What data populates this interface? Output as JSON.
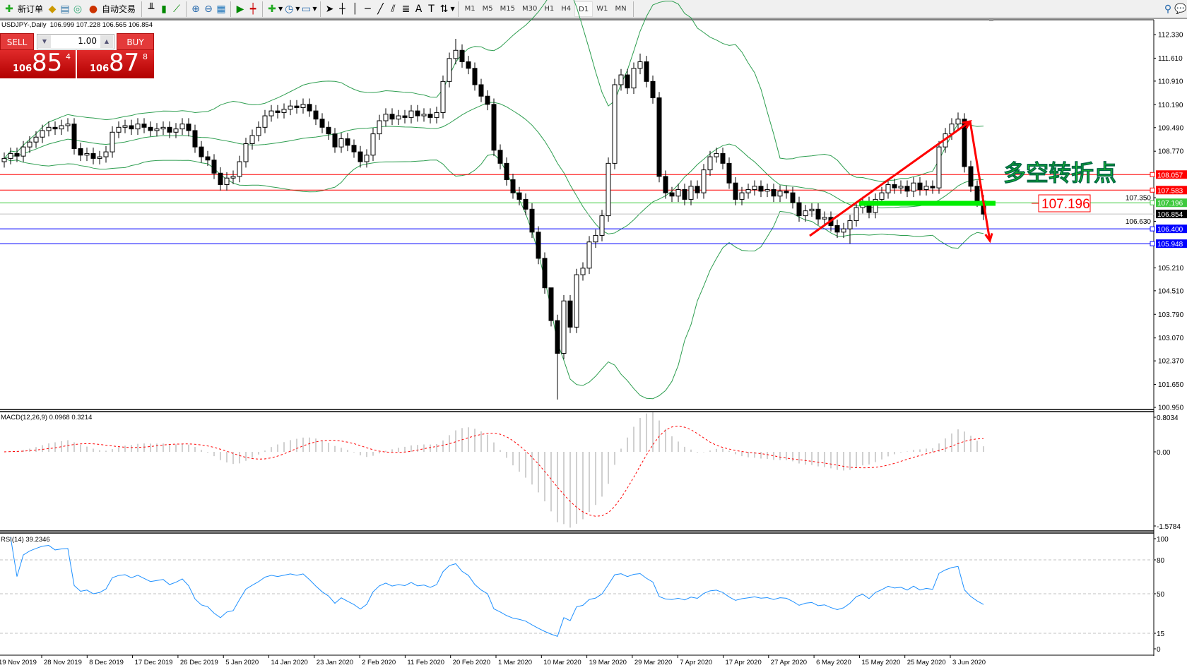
{
  "toolbar": {
    "new_order": "新订单",
    "auto_trading": "自动交易",
    "timeframes": [
      "M1",
      "M5",
      "M15",
      "M30",
      "H1",
      "H4",
      "D1",
      "W1",
      "MN"
    ],
    "active_timeframe": "D1",
    "icons": [
      "new-order-icon",
      "history-icon",
      "market-watch-icon",
      "signals-icon",
      "auto-trading-icon",
      "bar-chart-icon",
      "candlestick-icon",
      "line-chart-icon",
      "zoom-in-icon",
      "zoom-out-icon",
      "tile-windows-icon",
      "autoscroll-icon",
      "chart-shift-icon",
      "indicators-icon",
      "periods-icon",
      "templates-icon",
      "cursor-icon",
      "crosshair-icon",
      "vertical-line-icon",
      "horizontal-line-icon",
      "trendline-icon",
      "equidistant-channel-icon",
      "fibonacci-icon",
      "text-icon",
      "text-label-icon",
      "arrows-icon",
      "search-icon",
      "chat-icon"
    ]
  },
  "symbol_line": "USDJPY-,Daily  106.999 107.228 106.565 106.854",
  "trade_panel": {
    "sell_label": "SELL",
    "buy_label": "BUY",
    "lot": "1.00",
    "sell_price": {
      "small": "106",
      "big": "85",
      "sup": "4"
    },
    "buy_price": {
      "small": "106",
      "big": "87",
      "sup": "8"
    }
  },
  "chart_data": {
    "type": "candlestick",
    "symbol": "USDJPY-",
    "timeframe": "Daily",
    "price_ticks": [
      "112.330",
      "111.610",
      "110.910",
      "110.190",
      "109.490",
      "108.770",
      "107.350",
      "106.630",
      "105.210",
      "104.510",
      "103.790",
      "103.070",
      "102.370",
      "101.650",
      "100.950"
    ],
    "ylim": [
      100.95,
      112.33
    ],
    "candles": {
      "close": [
        108.55,
        108.7,
        108.62,
        108.9,
        109.05,
        109.2,
        109.4,
        109.5,
        109.45,
        109.55,
        109.6,
        108.85,
        108.65,
        108.7,
        108.55,
        108.6,
        108.75,
        109.35,
        109.5,
        109.55,
        109.45,
        109.6,
        109.5,
        109.4,
        109.45,
        109.5,
        109.35,
        109.45,
        109.6,
        109.4,
        108.9,
        108.6,
        108.5,
        108.1,
        107.75,
        107.95,
        108.0,
        108.45,
        109.0,
        109.25,
        109.5,
        109.85,
        110.0,
        109.95,
        110.05,
        110.15,
        110.1,
        110.2,
        110.0,
        109.75,
        109.5,
        109.3,
        108.9,
        109.15,
        108.95,
        108.75,
        108.45,
        108.65,
        109.3,
        109.7,
        109.9,
        109.75,
        109.85,
        109.8,
        110.0,
        109.85,
        109.9,
        109.8,
        109.95,
        110.9,
        111.6,
        111.85,
        111.5,
        111.3,
        110.8,
        110.45,
        110.2,
        108.8,
        108.4,
        107.9,
        107.5,
        107.3,
        107.0,
        106.3,
        105.5,
        104.6,
        103.6,
        102.6,
        104.2,
        103.4,
        105.0,
        105.2,
        106.0,
        106.2,
        106.8,
        108.4,
        110.8,
        111.1,
        110.7,
        111.3,
        111.5,
        110.9,
        110.4,
        108.0,
        107.5,
        107.4,
        107.6,
        107.3,
        107.7,
        107.5,
        108.2,
        108.6,
        108.7,
        108.4,
        107.8,
        107.3,
        107.5,
        107.6,
        107.7,
        107.55,
        107.6,
        107.4,
        107.55,
        107.5,
        107.2,
        106.8,
        106.95,
        107.0,
        106.7,
        106.75,
        106.5,
        106.3,
        106.4,
        106.65,
        107.05,
        107.2,
        106.9,
        107.3,
        107.5,
        107.75,
        107.65,
        107.7,
        107.55,
        107.8,
        107.6,
        107.7,
        107.65,
        108.9,
        109.3,
        109.6,
        109.75,
        108.3,
        107.7,
        107.25,
        106.85
      ],
      "first_open": 108.45,
      "wicks": [
        {
          "i": 71,
          "high": 112.2
        },
        {
          "i": 87,
          "low": 101.19
        },
        {
          "i": 86,
          "high": 104.6
        },
        {
          "i": 100,
          "high": 111.75
        },
        {
          "i": 150,
          "high": 109.95
        },
        {
          "i": 133,
          "low": 105.95
        }
      ]
    },
    "hlines": [
      {
        "price": "108.057",
        "color": "#ff0000",
        "label_bg": "#ff0000"
      },
      {
        "price": "107.583",
        "color": "#ff0000",
        "label_bg": "#ff0000"
      },
      {
        "price": "107.196",
        "color": "#3ec93e",
        "label_bg": "#3ec93e"
      },
      {
        "price": "106.854",
        "color": "#c0c0c0",
        "label_bg": "#000000"
      },
      {
        "price": "106.400",
        "color": "#0000ff",
        "label_bg": "#0000ff"
      },
      {
        "price": "105.948",
        "color": "#0000ff",
        "label_bg": "#0000ff"
      }
    ],
    "indicators": {
      "bollinger": {
        "color": "#2e9e50"
      },
      "macd": {
        "label": "MACD(12,26,9) 0.0968 0.3214",
        "ticks": [
          "0.8034",
          "0.00",
          "-1.5784"
        ],
        "hist_color": "#c0c0c0",
        "signal_color": "#ff0000"
      },
      "rsi": {
        "label": "RSI(14) 39.2346",
        "ticks": [
          "100",
          "80",
          "50",
          "15",
          "0"
        ],
        "levels": [
          80,
          50,
          15
        ],
        "color": "#1e90ff"
      }
    },
    "date_labels": [
      "19 Nov 2019",
      "28 Nov 2019",
      "8 Dec 2019",
      "17 Dec 2019",
      "26 Dec 2019",
      "5 Jan 2020",
      "14 Jan 2020",
      "23 Jan 2020",
      "2 Feb 2020",
      "11 Feb 2020",
      "20 Feb 2020",
      "1 Mar 2020",
      "10 Mar 2020",
      "19 Mar 2020",
      "29 Mar 2020",
      "7 Apr 2020",
      "17 Apr 2020",
      "27 Apr 2020",
      "6 May 2020",
      "15 May 2020",
      "25 May 2020",
      "3 Jun 2020"
    ],
    "annotations": {
      "title_text": "多空转折点",
      "title_color": "#22dd22",
      "price_box": "107.196",
      "arrow_color": "#ff0000",
      "support_bar_color": "#00ee00"
    }
  }
}
